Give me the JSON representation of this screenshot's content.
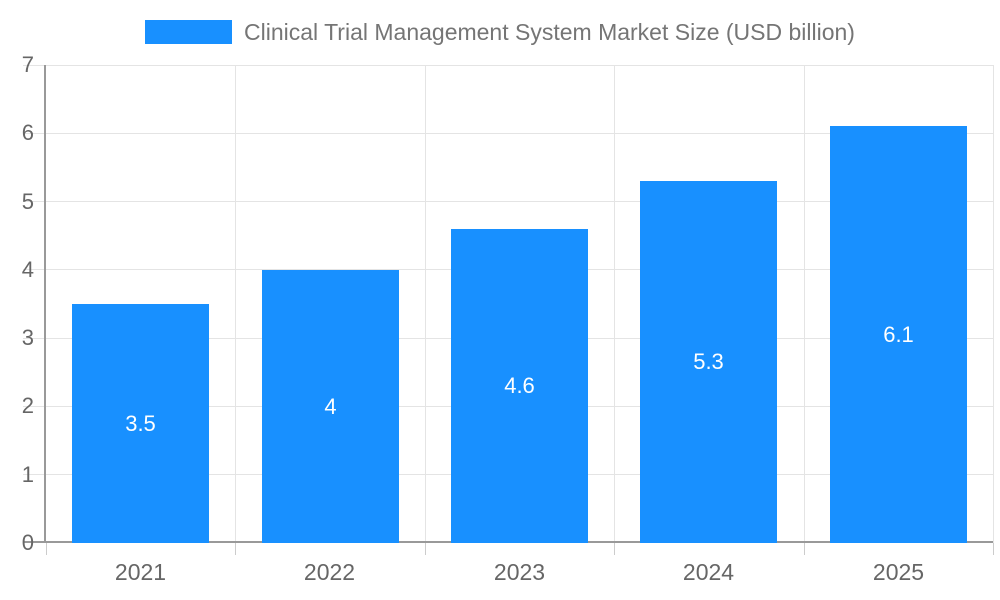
{
  "chart_data": {
    "type": "bar",
    "title": "Clinical Trial Management System Market Size (USD billion)",
    "categories": [
      "2021",
      "2022",
      "2023",
      "2024",
      "2025"
    ],
    "values": [
      3.5,
      4,
      4.6,
      5.3,
      6.1
    ],
    "value_labels": [
      "3.5",
      "4",
      "4.6",
      "5.3",
      "6.1"
    ],
    "xlabel": "",
    "ylabel": "",
    "ylim": [
      0,
      7
    ],
    "yticks": [
      0,
      1,
      2,
      3,
      4,
      5,
      6,
      7
    ],
    "grid": true,
    "legend_position": "top-center",
    "colors": {
      "bar": "#1890FF",
      "title": "#757575",
      "tick_label": "#666666",
      "axis": "#999999",
      "grid": "#E4E4E4",
      "x_tick_mark": "#CCCCCC",
      "value_label": "#FFFFFF",
      "background": "#FFFFFF"
    }
  }
}
